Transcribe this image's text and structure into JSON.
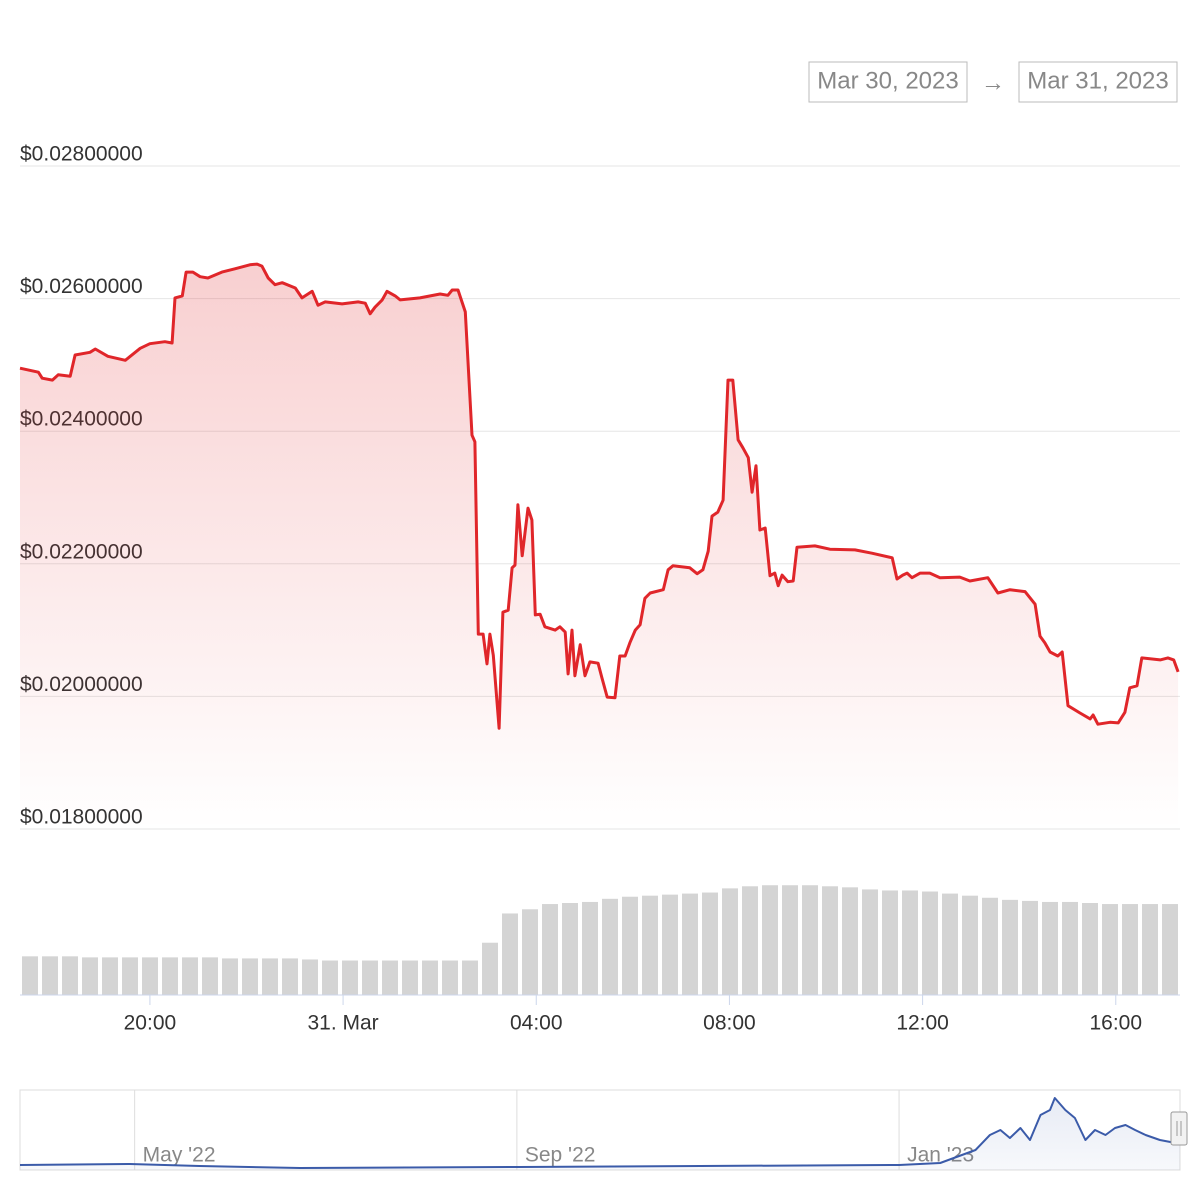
{
  "range_selector": {
    "from": "Mar 30, 2023",
    "separator": "→",
    "to": "Mar 31, 2023"
  },
  "chart_data": [
    {
      "type": "line",
      "area": true,
      "color": "#e0262a",
      "grid": true,
      "x": [
        -6.69,
        -6.31,
        -6.23,
        -6.02,
        -5.9,
        -5.65,
        -5.55,
        -5.24,
        -5.13,
        -4.87,
        -4.51,
        -4.2,
        -4.0,
        -3.69,
        -3.54,
        -3.48,
        -3.33,
        -3.25,
        -3.11,
        -2.96,
        -2.8,
        -2.51,
        -2.24,
        -1.93,
        -1.78,
        -1.68,
        -1.55,
        -1.41,
        -1.26,
        -0.99,
        -0.85,
        -0.64,
        -0.52,
        -0.37,
        -0.02,
        0.31,
        0.46,
        0.56,
        0.66,
        0.81,
        0.91,
        1.08,
        1.18,
        1.59,
        2.01,
        2.17,
        2.26,
        2.38,
        2.53,
        2.67,
        2.73,
        2.8,
        2.9,
        2.98,
        3.04,
        3.11,
        3.23,
        3.31,
        3.42,
        3.5,
        3.56,
        3.62,
        3.71,
        3.83,
        3.91,
        3.98,
        4.08,
        4.18,
        4.39,
        4.49,
        4.6,
        4.66,
        4.74,
        4.8,
        4.91,
        5.01,
        5.11,
        5.28,
        5.36,
        5.47,
        5.63,
        5.73,
        5.84,
        5.94,
        6.05,
        6.15,
        6.25,
        6.36,
        6.63,
        6.73,
        6.83,
        7.18,
        7.33,
        7.45,
        7.56,
        7.64,
        7.76,
        7.87,
        7.97,
        8.07,
        8.18,
        8.28,
        8.39,
        8.47,
        8.55,
        8.63,
        8.74,
        8.84,
        8.94,
        9.01,
        9.09,
        9.21,
        9.32,
        9.4,
        9.77,
        10.08,
        10.6,
        10.95,
        11.37,
        11.47,
        11.59,
        11.68,
        11.78,
        11.95,
        12.15,
        12.36,
        12.77,
        12.98,
        13.35,
        13.56,
        13.81,
        14.12,
        14.33,
        14.43,
        14.53,
        14.64,
        14.8,
        14.89,
        15.01,
        15.26,
        15.47,
        15.53,
        15.63,
        15.88,
        16.05,
        16.19,
        16.29,
        16.44,
        16.54,
        16.92,
        17.08,
        17.2,
        17.29
      ],
      "values": [
        0.02495,
        0.02489,
        0.0248,
        0.02477,
        0.02485,
        0.02483,
        0.02515,
        0.02519,
        0.02524,
        0.02513,
        0.02507,
        0.02525,
        0.02532,
        0.02535,
        0.02533,
        0.02601,
        0.02604,
        0.0264,
        0.0264,
        0.02633,
        0.02631,
        0.0264,
        0.02645,
        0.02651,
        0.02652,
        0.02649,
        0.02631,
        0.02621,
        0.02624,
        0.02616,
        0.02601,
        0.02611,
        0.0259,
        0.02595,
        0.02592,
        0.02595,
        0.02593,
        0.02577,
        0.02587,
        0.02598,
        0.02611,
        0.02604,
        0.02598,
        0.02601,
        0.02607,
        0.02605,
        0.02613,
        0.02613,
        0.0258,
        0.02394,
        0.02384,
        0.02094,
        0.02094,
        0.02049,
        0.02094,
        0.02062,
        0.01952,
        0.02127,
        0.0213,
        0.02194,
        0.02198,
        0.02289,
        0.02212,
        0.02284,
        0.02266,
        0.02123,
        0.02124,
        0.02105,
        0.021,
        0.02105,
        0.02097,
        0.02034,
        0.021,
        0.02031,
        0.02078,
        0.02031,
        0.02052,
        0.0205,
        0.02028,
        0.01999,
        0.01998,
        0.02061,
        0.02061,
        0.02081,
        0.021,
        0.02108,
        0.02148,
        0.02156,
        0.02161,
        0.02191,
        0.02197,
        0.02194,
        0.02185,
        0.02191,
        0.02219,
        0.02272,
        0.02278,
        0.02296,
        0.02477,
        0.02477,
        0.02387,
        0.02375,
        0.0236,
        0.02308,
        0.02348,
        0.02251,
        0.02254,
        0.02182,
        0.02186,
        0.02167,
        0.02183,
        0.02173,
        0.02174,
        0.02225,
        0.02227,
        0.02222,
        0.02221,
        0.02216,
        0.02209,
        0.02177,
        0.02183,
        0.02186,
        0.02179,
        0.02186,
        0.02186,
        0.02179,
        0.0218,
        0.02174,
        0.02179,
        0.02156,
        0.02161,
        0.02158,
        0.02139,
        0.02091,
        0.02081,
        0.02067,
        0.02061,
        0.02067,
        0.01986,
        0.01975,
        0.01966,
        0.01972,
        0.01958,
        0.01961,
        0.0196,
        0.01976,
        0.02013,
        0.02016,
        0.02058,
        0.02055,
        0.02058,
        0.02055,
        0.02037
      ],
      "xlim": [
        -6.69,
        17.33
      ],
      "xticks": [
        {
          "value": -4,
          "label": "20:00"
        },
        {
          "value": 0,
          "label": "31. Mar"
        },
        {
          "value": 4,
          "label": "04:00"
        },
        {
          "value": 8,
          "label": "08:00"
        },
        {
          "value": 12,
          "label": "12:00"
        },
        {
          "value": 16,
          "label": "16:00"
        }
      ],
      "ylim": [
        0.018,
        0.028
      ],
      "yticks": [
        {
          "value": 0.028,
          "label": "$0.02800000"
        },
        {
          "value": 0.026,
          "label": "$0.02600000"
        },
        {
          "value": 0.024,
          "label": "$0.02400000"
        },
        {
          "value": 0.022,
          "label": "$0.02200000"
        },
        {
          "value": 0.02,
          "label": "$0.02000000"
        },
        {
          "value": 0.018,
          "label": "$0.01800000"
        }
      ]
    },
    {
      "type": "bar",
      "color": "#d4d4d4",
      "ylim": [
        0,
        110
      ],
      "values": [
        37,
        37,
        37,
        36,
        36,
        36,
        36,
        36,
        36,
        36,
        35,
        35,
        35,
        35,
        34,
        33,
        33,
        33,
        33,
        33,
        33,
        33,
        33,
        50,
        78,
        82,
        87,
        88,
        89,
        92,
        94,
        95,
        96,
        97,
        98,
        102,
        104,
        105,
        105,
        105,
        104,
        103,
        101,
        100,
        100,
        99,
        97,
        95,
        93,
        91,
        90,
        89,
        89,
        88,
        87,
        87,
        87,
        87
      ]
    },
    {
      "type": "line",
      "area": true,
      "color": "#3b5ba9",
      "ylim": [
        0,
        80
      ],
      "x": [
        2.8,
        3.95,
        4.68,
        5.73,
        8.02,
        9.92,
        12.0,
        12.43,
        12.8,
        12.95,
        13.06,
        13.16,
        13.27,
        13.37,
        13.48,
        13.58,
        13.63,
        13.74,
        13.84,
        13.95,
        14.05,
        14.16,
        14.26,
        14.37,
        14.47,
        14.58,
        14.73,
        14.84,
        14.94
      ],
      "values": [
        5,
        6,
        4,
        2,
        3,
        4,
        5,
        7,
        20,
        35,
        40,
        32,
        42,
        30,
        55,
        60,
        72,
        60,
        52,
        30,
        40,
        35,
        42,
        45,
        40,
        35,
        30,
        28,
        30
      ],
      "xlim": [
        2.8,
        14.94
      ],
      "xticks": [
        {
          "value": 4,
          "label": "May '22"
        },
        {
          "value": 8,
          "label": "Sep '22"
        },
        {
          "value": 12,
          "label": "Jan '23"
        }
      ]
    }
  ]
}
